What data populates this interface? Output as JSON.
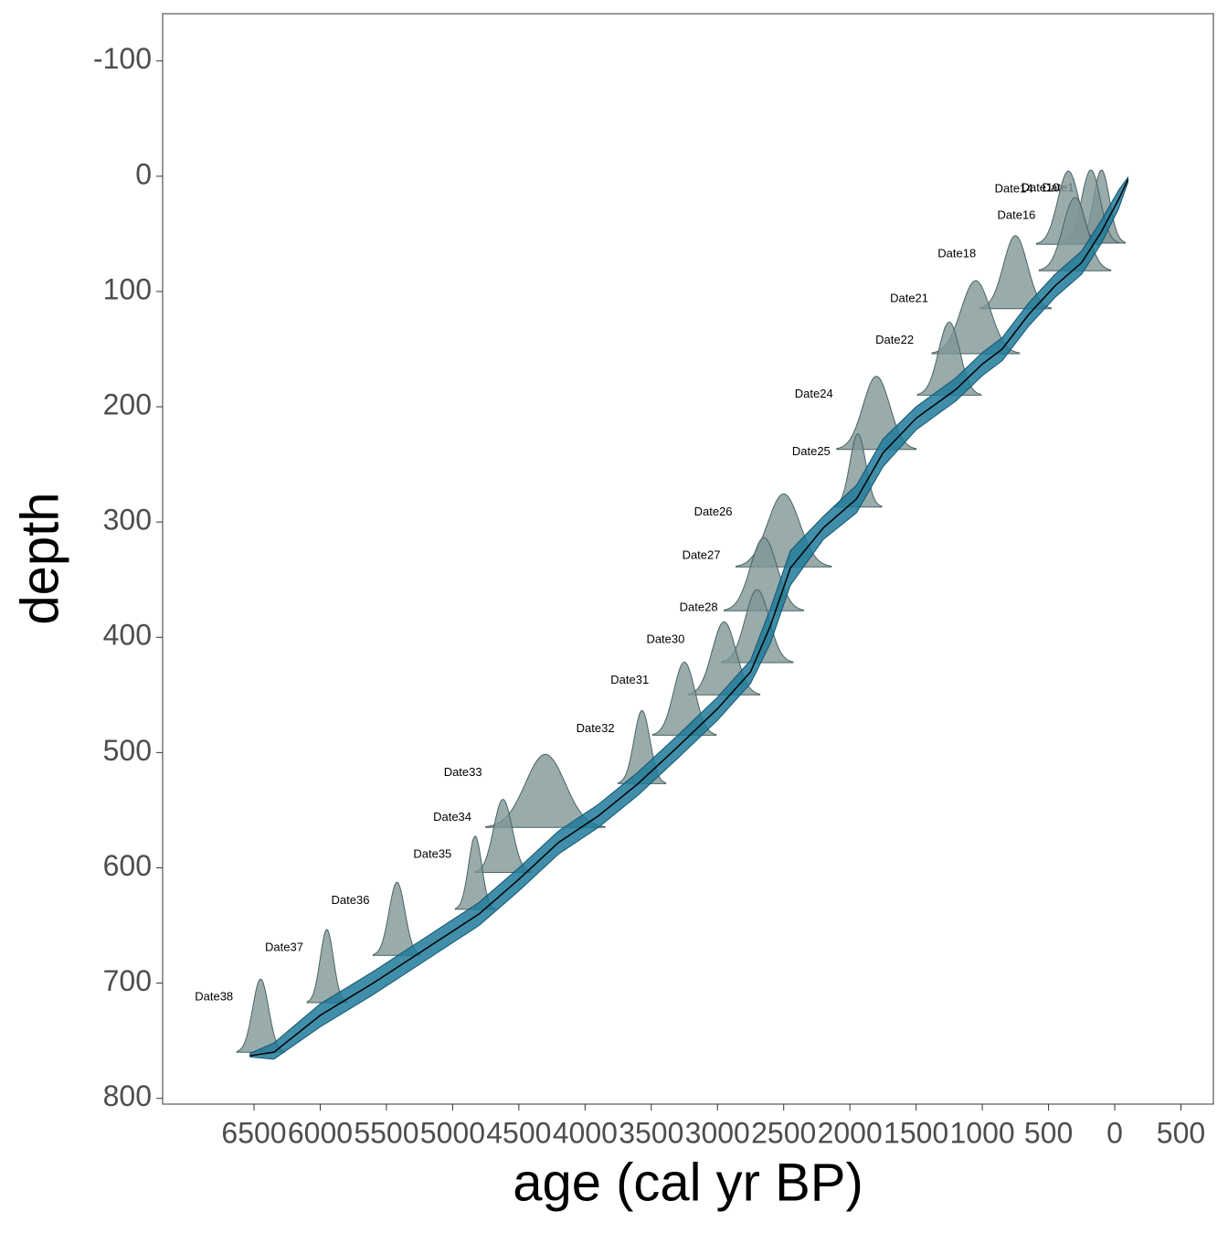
{
  "chart_data": {
    "type": "agedepth",
    "x_label": "age (cal yr BP)",
    "y_label": "depth",
    "xlim": [
      7190,
      -745
    ],
    "ylim": [
      805,
      -141
    ],
    "xticks": [
      6500,
      6000,
      5500,
      5000,
      4500,
      4000,
      3500,
      3000,
      2500,
      2000,
      1500,
      1000,
      500,
      0,
      {
        "value": -500,
        "label": "500"
      }
    ],
    "yticks": [
      -100,
      0,
      100,
      200,
      300,
      400,
      500,
      600,
      700,
      800
    ],
    "band_color": "#1f7a9a",
    "line_color": "#000000",
    "date_color": "#7f9696",
    "line": {
      "age": [
        6530,
        6350,
        6000,
        5600,
        5200,
        4800,
        4500,
        4200,
        3900,
        3600,
        3300,
        3000,
        2750,
        2600,
        2450,
        2200,
        1950,
        1750,
        1500,
        1200,
        1000,
        850,
        650,
        450,
        250,
        100,
        -30,
        -100
      ],
      "depth": [
        763,
        760,
        728,
        700,
        670,
        640,
        610,
        578,
        555,
        527,
        495,
        462,
        430,
        390,
        340,
        305,
        280,
        240,
        210,
        185,
        163,
        150,
        120,
        95,
        75,
        48,
        20,
        3
      ],
      "depth_min": [
        761,
        752,
        718,
        690,
        660,
        630,
        600,
        568,
        545,
        517,
        485,
        452,
        420,
        375,
        325,
        295,
        268,
        228,
        200,
        175,
        153,
        140,
        110,
        85,
        65,
        38,
        12,
        1
      ],
      "depth_max": [
        764,
        766,
        738,
        710,
        680,
        650,
        620,
        588,
        565,
        537,
        505,
        472,
        440,
        405,
        355,
        315,
        292,
        252,
        220,
        195,
        173,
        160,
        130,
        105,
        85,
        58,
        28,
        5
      ]
    },
    "dates": [
      {
        "label": "Date1",
        "age": 100,
        "sd": 60,
        "depth": 58
      },
      {
        "label": "Date10",
        "age": 180,
        "sd": 70,
        "depth": 58
      },
      {
        "label": "Date14",
        "age": 350,
        "sd": 80,
        "depth": 59
      },
      {
        "label": "Date16",
        "age": 300,
        "sd": 90,
        "depth": 82
      },
      {
        "label": "Date18",
        "age": 750,
        "sd": 90,
        "depth": 115
      },
      {
        "label": "Date21",
        "age": 1050,
        "sd": 110,
        "depth": 154
      },
      {
        "label": "Date22",
        "age": 1250,
        "sd": 80,
        "depth": 190
      },
      {
        "label": "Date24",
        "age": 1800,
        "sd": 100,
        "depth": 237
      },
      {
        "label": "Date25",
        "age": 1940,
        "sd": 60,
        "depth": 287
      },
      {
        "label": "Date26",
        "age": 2500,
        "sd": 120,
        "depth": 339
      },
      {
        "label": "Date27",
        "age": 2650,
        "sd": 100,
        "depth": 377
      },
      {
        "label": "Date28",
        "age": 2700,
        "sd": 90,
        "depth": 422
      },
      {
        "label": "Date30",
        "age": 2950,
        "sd": 90,
        "depth": 450
      },
      {
        "label": "Date31",
        "age": 3250,
        "sd": 80,
        "depth": 485
      },
      {
        "label": "Date32",
        "age": 3570,
        "sd": 60,
        "depth": 527
      },
      {
        "label": "Date33",
        "age": 4300,
        "sd": 150,
        "depth": 565
      },
      {
        "label": "Date34",
        "age": 4620,
        "sd": 70,
        "depth": 604
      },
      {
        "label": "Date35",
        "age": 4830,
        "sd": 50,
        "depth": 636
      },
      {
        "label": "Date36",
        "age": 5420,
        "sd": 60,
        "depth": 676
      },
      {
        "label": "Date37",
        "age": 5950,
        "sd": 50,
        "depth": 717
      },
      {
        "label": "Date38",
        "age": 6450,
        "sd": 60,
        "depth": 760
      }
    ]
  }
}
